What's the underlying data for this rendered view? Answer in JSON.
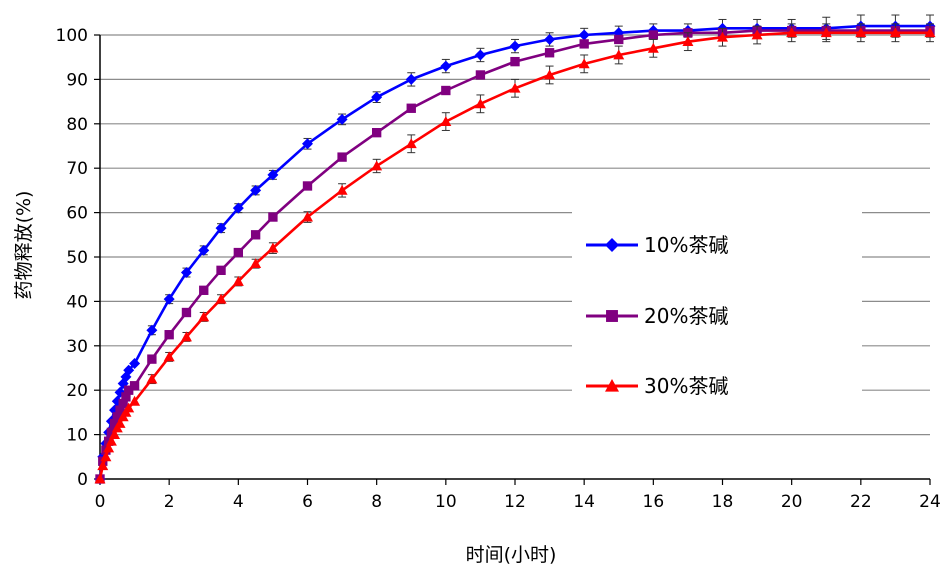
{
  "chart_data": {
    "type": "line",
    "xlabel": "时间(小时)",
    "ylabel": "药物释放(%)",
    "xlim": [
      0,
      24
    ],
    "ylim": [
      0,
      100
    ],
    "x_ticks": [
      "0",
      "2",
      "4",
      "6",
      "8",
      "10",
      "12",
      "14",
      "16",
      "18",
      "20",
      "22",
      "24"
    ],
    "y_ticks": [
      "0",
      "10",
      "20",
      "30",
      "40",
      "50",
      "60",
      "70",
      "80",
      "90",
      "100"
    ],
    "grid": "horizontal",
    "legend_position": "right",
    "error_bars": true,
    "series": [
      {
        "name": "10%茶碱",
        "color": "#0000FF",
        "marker": "diamond",
        "x": [
          0,
          0.08,
          0.17,
          0.25,
          0.33,
          0.42,
          0.5,
          0.58,
          0.67,
          0.75,
          0.83,
          1,
          1.5,
          2,
          2.5,
          3,
          3.5,
          4,
          4.5,
          5,
          6,
          7,
          8,
          9,
          10,
          11,
          12,
          13,
          14,
          15,
          16,
          17,
          18,
          19,
          20,
          21,
          22,
          23,
          24
        ],
        "y": [
          0,
          5,
          8,
          10.5,
          13,
          15.5,
          17.5,
          19.5,
          21.5,
          23,
          24.5,
          26,
          33.5,
          40.5,
          46.5,
          51.5,
          56.5,
          61,
          65,
          68.5,
          75.5,
          81,
          86,
          90,
          93,
          95.5,
          97.5,
          99,
          100,
          100.5,
          101,
          101,
          101.5,
          101.5,
          101.5,
          101.5,
          102,
          102,
          102
        ],
        "err": [
          0,
          0,
          0,
          0,
          0,
          0,
          0,
          0,
          0,
          0,
          0,
          0,
          1,
          1,
          1,
          1,
          1,
          1,
          1,
          1,
          1.2,
          1.2,
          1.2,
          1.5,
          1.5,
          1.5,
          1.5,
          1.5,
          1.5,
          1.5,
          1.5,
          1.5,
          2,
          2,
          2,
          2.5,
          2.5,
          2.5,
          2.5
        ]
      },
      {
        "name": "20%茶碱",
        "color": "#800080",
        "marker": "square",
        "x": [
          0,
          0.08,
          0.17,
          0.25,
          0.33,
          0.42,
          0.5,
          0.58,
          0.67,
          0.75,
          0.83,
          1,
          1.5,
          2,
          2.5,
          3,
          3.5,
          4,
          4.5,
          5,
          6,
          7,
          8,
          9,
          10,
          11,
          12,
          13,
          14,
          15,
          16,
          17,
          18,
          19,
          20,
          21,
          22,
          23,
          24
        ],
        "y": [
          0,
          4,
          6.5,
          8.5,
          10.5,
          12.5,
          14,
          15.5,
          17,
          18.5,
          20,
          21,
          27,
          32.5,
          37.5,
          42.5,
          47,
          51,
          55,
          59,
          66,
          72.5,
          78,
          83.5,
          87.5,
          91,
          94,
          96,
          98,
          99,
          100,
          100.5,
          100.5,
          101,
          101,
          101,
          101,
          101,
          101
        ]
      },
      {
        "name": "30%茶碱",
        "color": "#FF0000",
        "marker": "triangle",
        "x": [
          0,
          0.08,
          0.17,
          0.25,
          0.33,
          0.42,
          0.5,
          0.58,
          0.67,
          0.75,
          0.83,
          1,
          1.5,
          2,
          2.5,
          3,
          3.5,
          4,
          4.5,
          5,
          6,
          7,
          8,
          9,
          10,
          11,
          12,
          13,
          14,
          15,
          16,
          17,
          18,
          19,
          20,
          21,
          22,
          23,
          24
        ],
        "y": [
          0,
          3,
          5,
          7,
          8.5,
          10,
          11.5,
          12.5,
          14,
          15,
          16,
          17.5,
          22.5,
          27.5,
          32,
          36.5,
          40.5,
          44.5,
          48.5,
          52,
          59,
          65,
          70.5,
          75.5,
          80.5,
          84.5,
          88,
          91,
          93.5,
          95.5,
          97,
          98.5,
          99.5,
          100,
          100.5,
          100.5,
          100.5,
          100.5,
          100.5
        ],
        "err": [
          0,
          0,
          0,
          0,
          0,
          0,
          0,
          0,
          0,
          0,
          0,
          0,
          1,
          1,
          1,
          1,
          1,
          1,
          1,
          1.2,
          1.2,
          1.5,
          1.5,
          2,
          2,
          2,
          2,
          2,
          2,
          2,
          2,
          2,
          2,
          2,
          2,
          2,
          2,
          2,
          2
        ]
      }
    ]
  }
}
